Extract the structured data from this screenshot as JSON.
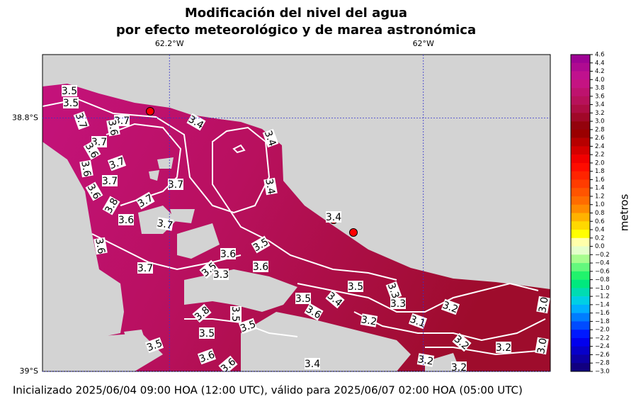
{
  "chart_data": {
    "type": "contour-map",
    "title": [
      "Modificación del nivel del agua",
      "por efecto meteorológico y de marea astronómica"
    ],
    "xlim": [
      -62.3,
      -61.9
    ],
    "ylim": [
      -39.0,
      -38.75
    ],
    "xticks": [
      {
        "value": -62.2,
        "label": "62.2°W"
      },
      {
        "value": -62.0,
        "label": "62°W"
      }
    ],
    "yticks": [
      {
        "value": -38.8,
        "label": "38.8°S"
      },
      {
        "value": -39.0,
        "label": "39°S"
      }
    ],
    "colorbar": {
      "label": "metros",
      "lim": [
        -3.0,
        4.6
      ],
      "ticks": [
        4.6,
        4.4,
        4.2,
        {
          "value": 4,
          "label": "4.0"
        },
        3.8,
        3.6,
        3.4,
        3.2,
        {
          "value": 3,
          "label": "3.0"
        },
        2.8,
        2.6,
        2.4,
        2.2,
        {
          "value": 2,
          "label": "2.0"
        },
        1.8,
        1.6,
        1.4,
        1.2,
        {
          "value": 1,
          "label": "1.0"
        },
        0.8,
        0.6,
        0.4,
        0.2,
        {
          "value": 0,
          "label": "0.0"
        },
        {
          "value": -0.2,
          "label": "−0.2"
        },
        {
          "value": -0.4,
          "label": "−0.4"
        },
        {
          "value": -0.6,
          "label": "−0.6"
        },
        {
          "value": -0.8,
          "label": "−0.8"
        },
        {
          "value": -1,
          "label": "−1.0"
        },
        {
          "value": -1.2,
          "label": "−1.2"
        },
        {
          "value": -1.4,
          "label": "−1.4"
        },
        {
          "value": -1.6,
          "label": "−1.6"
        },
        {
          "value": -1.8,
          "label": "−1.8"
        },
        {
          "value": -2,
          "label": "−2.0"
        },
        {
          "value": -2.2,
          "label": "−2.2"
        },
        {
          "value": -2.4,
          "label": "−2.4"
        },
        {
          "value": -2.6,
          "label": "−2.6"
        },
        {
          "value": -2.8,
          "label": "−2.8"
        },
        {
          "value": -3,
          "label": "−3.0"
        }
      ]
    },
    "contour_labels": [
      "3.5",
      "3.5",
      "3.7",
      "3.7",
      "3.6",
      "3.4",
      "3.4",
      "3.7",
      "3.6",
      "3.7",
      "3.6",
      "3.7",
      "3.4",
      "3.7",
      "3.6",
      "3.7",
      "3.8",
      "3.6",
      "3.7",
      "3.4",
      "3.6",
      "3.5",
      "3.6",
      "3.7",
      "3.6",
      "3.5",
      "3.3",
      "3.5",
      "3.3",
      "3.5",
      "3.4",
      "3.6",
      "3.3",
      "3.2",
      "3.2",
      "3.1",
      "3.0",
      "3.8",
      "3.5",
      "3.5",
      "3.5",
      "3.2",
      "3.2",
      "3.0",
      "3.5",
      "3.6",
      "3.6",
      "3.4",
      "3.2",
      "3.2"
    ],
    "footer": "Inicializado 2025/06/04 09:00 HOA (12:00 UTC), válido para 2025/06/07 02:00 HOA (05:00 UTC)"
  }
}
